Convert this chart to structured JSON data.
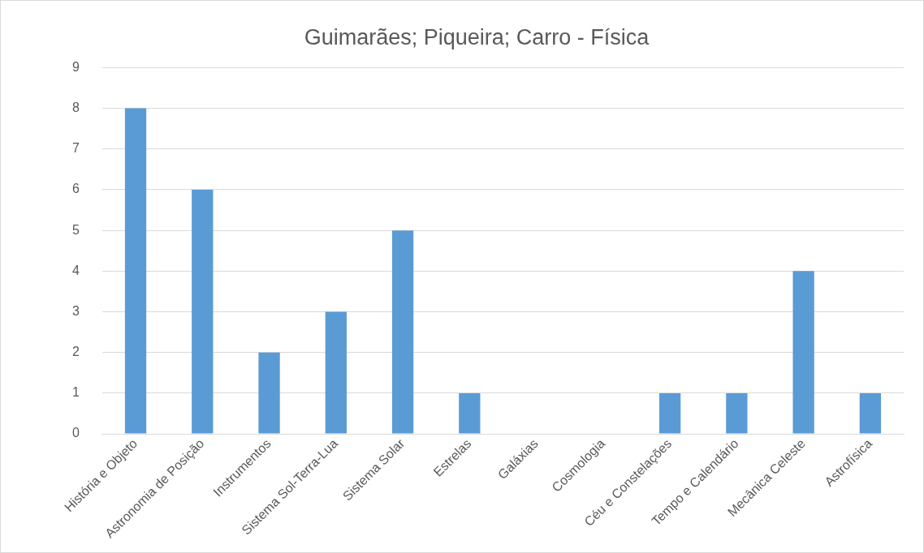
{
  "chart_data": {
    "type": "bar",
    "title": "Guimarães; Piqueira; Carro - Física",
    "categories": [
      "História e Objeto",
      "Astronomia de Posição",
      "Instrumentos",
      "Sistema Sol-Terra-Lua",
      "Sistema Solar",
      "Estrelas",
      "Galáxias",
      "Cosmologia",
      "Céu e Constelações",
      "Tempo e Calendário",
      "Mecânica Celeste",
      "Astrofísica"
    ],
    "values": [
      8,
      6,
      2,
      3,
      5,
      1,
      0,
      0,
      1,
      1,
      4,
      1
    ],
    "color": "#5b9bd5",
    "ylim": [
      0,
      9
    ],
    "yticks": [
      0,
      1,
      2,
      3,
      4,
      5,
      6,
      7,
      8,
      9
    ],
    "grid": "y",
    "legend": false
  }
}
